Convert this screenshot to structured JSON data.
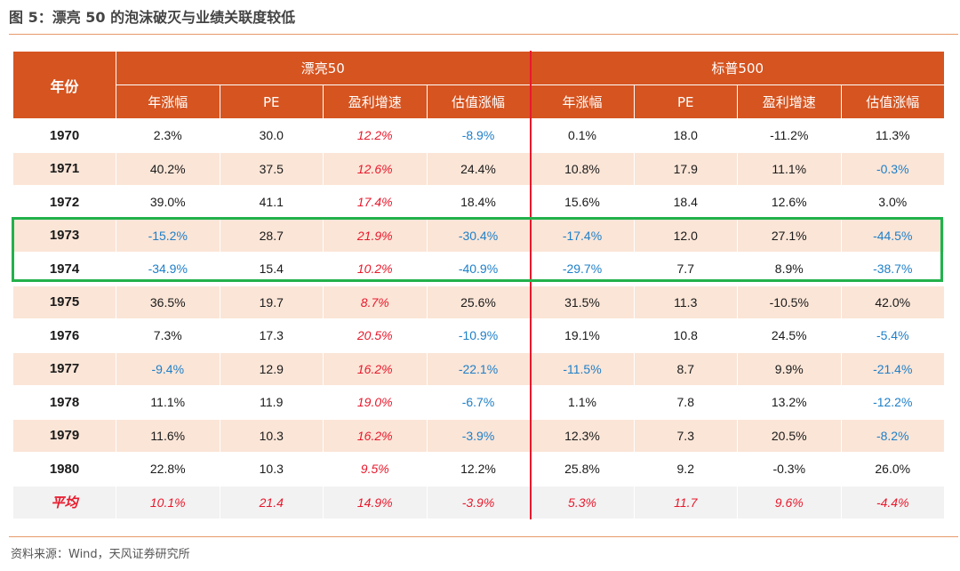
{
  "title": "图 5：漂亮 50 的泡沫破灭与业绩关联度较低",
  "source": "资料来源：Wind，天风证券研究所",
  "headers": {
    "year": "年份",
    "group1": "漂亮50",
    "group2": "标普500",
    "cols": [
      "年涨幅",
      "PE",
      "盈利增速",
      "估值涨幅",
      "年涨幅",
      "PE",
      "盈利增速",
      "估值涨幅"
    ]
  },
  "rows": [
    {
      "year": "1970",
      "cells": [
        "2.3%",
        "30.0",
        "12.2%",
        "-8.9%",
        "0.1%",
        "18.0",
        "-11.2%",
        "11.3%"
      ]
    },
    {
      "year": "1971",
      "cells": [
        "40.2%",
        "37.5",
        "12.6%",
        "24.4%",
        "10.8%",
        "17.9",
        "11.1%",
        "-0.3%"
      ]
    },
    {
      "year": "1972",
      "cells": [
        "39.0%",
        "41.1",
        "17.4%",
        "18.4%",
        "15.6%",
        "18.4",
        "12.6%",
        "3.0%"
      ]
    },
    {
      "year": "1973",
      "cells": [
        "-15.2%",
        "28.7",
        "21.9%",
        "-30.4%",
        "-17.4%",
        "12.0",
        "27.1%",
        "-44.5%"
      ]
    },
    {
      "year": "1974",
      "cells": [
        "-34.9%",
        "15.4",
        "10.2%",
        "-40.9%",
        "-29.7%",
        "7.7",
        "8.9%",
        "-38.7%"
      ]
    },
    {
      "year": "1975",
      "cells": [
        "36.5%",
        "19.7",
        "8.7%",
        "25.6%",
        "31.5%",
        "11.3",
        "-10.5%",
        "42.0%"
      ]
    },
    {
      "year": "1976",
      "cells": [
        "7.3%",
        "17.3",
        "20.5%",
        "-10.9%",
        "19.1%",
        "10.8",
        "24.5%",
        "-5.4%"
      ]
    },
    {
      "year": "1977",
      "cells": [
        "-9.4%",
        "12.9",
        "16.2%",
        "-22.1%",
        "-11.5%",
        "8.7",
        "9.9%",
        "-21.4%"
      ]
    },
    {
      "year": "1978",
      "cells": [
        "11.1%",
        "11.9",
        "19.0%",
        "-6.7%",
        "1.1%",
        "7.8",
        "13.2%",
        "-12.2%"
      ]
    },
    {
      "year": "1979",
      "cells": [
        "11.6%",
        "10.3",
        "16.2%",
        "-3.9%",
        "12.3%",
        "7.3",
        "20.5%",
        "-8.2%"
      ]
    },
    {
      "year": "1980",
      "cells": [
        "22.8%",
        "10.3",
        "9.5%",
        "12.2%",
        "25.8%",
        "9.2",
        "-0.3%",
        "26.0%"
      ]
    }
  ],
  "average": {
    "year": "平均",
    "cells": [
      "10.1%",
      "21.4",
      "14.9%",
      "-3.9%",
      "5.3%",
      "11.7",
      "9.6%",
      "-4.4%"
    ]
  },
  "colors": {
    "header": "#d65420",
    "even_row": "#fbe5d7",
    "negative": "#1e7fc8",
    "highlight": "#e8192c",
    "box": "#22b14c"
  }
}
